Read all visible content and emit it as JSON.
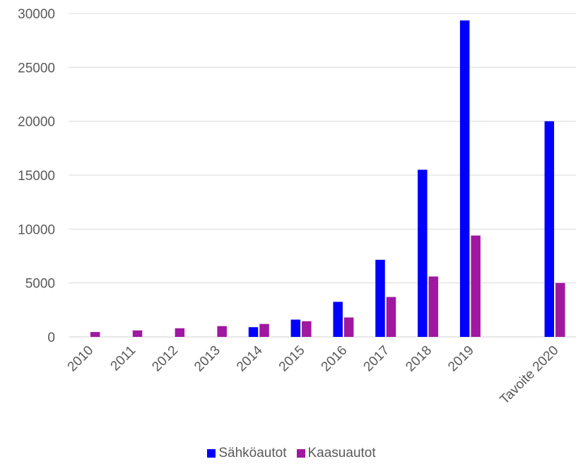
{
  "chart_data": {
    "type": "bar",
    "categories": [
      "2010",
      "2011",
      "2012",
      "2013",
      "2014",
      "2015",
      "2016",
      "2017",
      "2018",
      "2019",
      "",
      "Tavoite 2020"
    ],
    "series": [
      {
        "name": "Sähköautot",
        "color": "#0000FF",
        "values": [
          0,
          0,
          0,
          0,
          900,
          1600,
          3250,
          7150,
          15500,
          29350,
          null,
          20000
        ]
      },
      {
        "name": "Kaasuautot",
        "color": "#A0189F",
        "values": [
          450,
          600,
          800,
          1000,
          1200,
          1450,
          1800,
          3700,
          5600,
          9400,
          null,
          5000
        ]
      }
    ],
    "title": "",
    "xlabel": "",
    "ylabel": "",
    "ylim": [
      0,
      30000
    ],
    "yticks": [
      0,
      5000,
      10000,
      15000,
      20000,
      25000,
      30000
    ],
    "grid": true,
    "legend_position": "bottom"
  }
}
